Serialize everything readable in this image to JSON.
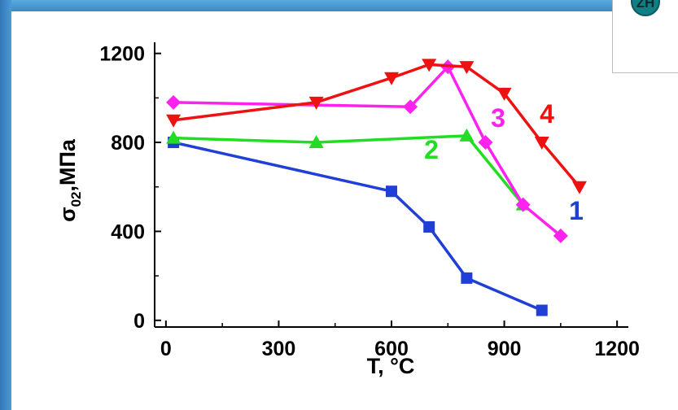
{
  "logo": {
    "text": "ZH"
  },
  "chart_data": {
    "type": "line",
    "xlabel": "T, °C",
    "ylabel": "σ",
    "ylabel_subscript": "02",
    "ylabel_unit": ",МПа",
    "xlim": [
      -30,
      1230
    ],
    "ylim": [
      -30,
      1250
    ],
    "xticks": [
      0,
      300,
      600,
      900,
      1200
    ],
    "yticks": [
      0,
      400,
      800,
      1200
    ],
    "grid": false,
    "series": [
      {
        "name": "1",
        "color": "#1f3fd6",
        "marker": "square",
        "x": [
          20,
          600,
          700,
          800,
          1000
        ],
        "y": [
          800,
          580,
          420,
          190,
          45
        ]
      },
      {
        "name": "2",
        "color": "#22dd22",
        "marker": "triangle-up",
        "x": [
          20,
          400,
          800,
          950
        ],
        "y": [
          820,
          800,
          830,
          520
        ]
      },
      {
        "name": "3",
        "color": "#ff22ee",
        "marker": "diamond",
        "x": [
          20,
          650,
          750,
          850,
          950,
          1050
        ],
        "y": [
          980,
          960,
          1140,
          800,
          520,
          380
        ]
      },
      {
        "name": "4",
        "color": "#ee1111",
        "marker": "triangle-down",
        "x": [
          20,
          400,
          600,
          700,
          800,
          900,
          1000,
          1100
        ],
        "y": [
          900,
          980,
          1090,
          1150,
          1140,
          1020,
          800,
          600
        ]
      }
    ]
  }
}
